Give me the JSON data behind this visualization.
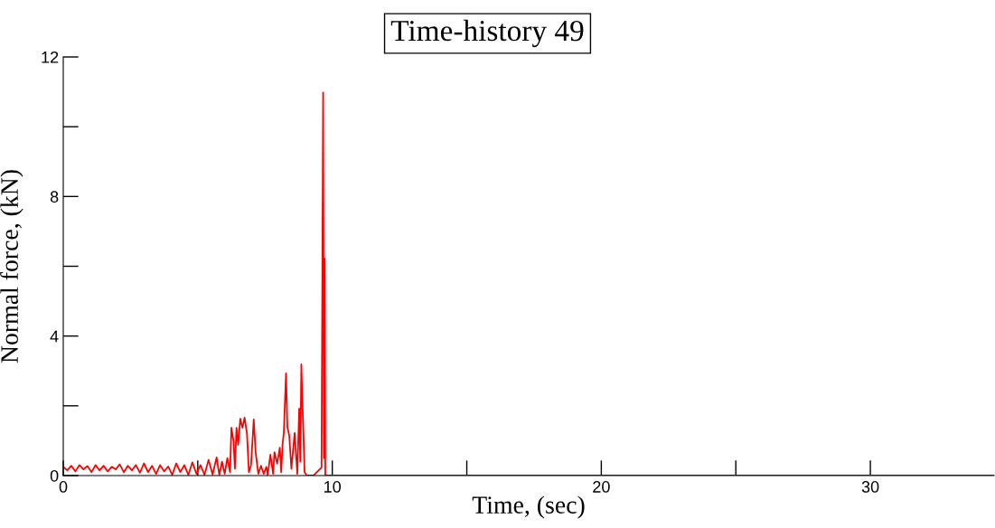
{
  "chart_data": {
    "type": "line",
    "title": "Time-history 49",
    "xlabel": "Time, (sec)",
    "ylabel": "Normal force, (kN)",
    "xlim": [
      0,
      34.6
    ],
    "ylim": [
      0,
      12
    ],
    "xticks": [
      0,
      10,
      20,
      30
    ],
    "yticks": [
      0,
      4,
      8,
      12
    ],
    "grid": false,
    "marker": "none",
    "line_style": "solid",
    "series": [
      {
        "color": "#ff0000",
        "x": [
          0,
          0.15,
          0.3,
          0.45,
          0.6,
          0.75,
          0.9,
          1.05,
          1.2,
          1.35,
          1.5,
          1.65,
          1.8,
          1.95,
          2.1,
          2.25,
          2.4,
          2.55,
          2.7,
          2.85,
          3.0,
          3.15,
          3.3,
          3.45,
          3.6,
          3.75,
          3.9,
          4.05,
          4.2,
          4.35,
          4.5,
          4.65,
          4.8,
          4.95,
          5.1,
          5.25,
          5.4,
          5.55,
          5.7,
          5.8,
          5.9,
          6.0,
          6.1,
          6.2,
          6.25,
          6.33,
          6.38,
          6.44,
          6.5,
          6.58,
          6.66,
          6.74,
          6.83,
          6.9,
          6.98,
          7.08,
          7.15,
          7.25,
          7.35,
          7.45,
          7.55,
          7.6,
          7.7,
          7.8,
          7.85,
          7.95,
          8.05,
          8.1,
          8.15,
          8.2,
          8.24,
          8.28,
          8.33,
          8.4,
          8.48,
          8.6,
          8.7,
          8.77,
          8.81,
          8.85,
          8.88,
          8.92,
          8.97,
          9.05,
          9.3,
          9.6,
          9.66,
          9.69,
          9.72,
          9.74,
          9.78,
          9.85,
          34.6
        ],
        "values": [
          0.25,
          0.15,
          0.28,
          0.12,
          0.3,
          0.18,
          0.27,
          0.1,
          0.3,
          0.15,
          0.28,
          0.12,
          0.25,
          0.18,
          0.32,
          0.1,
          0.28,
          0.15,
          0.3,
          0.08,
          0.35,
          0.1,
          0.28,
          0.05,
          0.3,
          0.12,
          0.26,
          0.02,
          0.35,
          0.1,
          0.3,
          0.02,
          0.38,
          0.05,
          0.3,
          0.02,
          0.45,
          0.03,
          0.52,
          0.02,
          0.4,
          0.05,
          0.5,
          0.1,
          1.37,
          0.98,
          0.2,
          1.37,
          0.88,
          1.63,
          1.37,
          1.66,
          1.19,
          0.1,
          0.3,
          1.61,
          0.67,
          0.05,
          0.28,
          0.05,
          0.25,
          0.02,
          0.6,
          0.05,
          0.67,
          0.34,
          0.8,
          0.1,
          0.88,
          1.24,
          2.1,
          2.93,
          1.4,
          1.14,
          0.2,
          1.22,
          0.05,
          1.92,
          0.4,
          3.19,
          2.28,
          1.4,
          0.1,
          0,
          0,
          0.23,
          10.98,
          0.5,
          6.22,
          0,
          0,
          0,
          0
        ]
      }
    ]
  }
}
